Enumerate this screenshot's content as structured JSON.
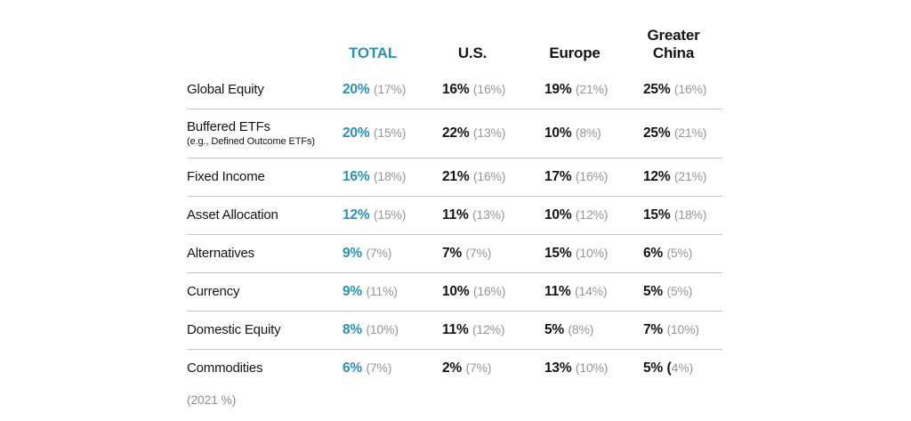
{
  "colors": {
    "accent_blue": "#2a90b5",
    "muted_gray": "#969696",
    "divider": "#c5c5c5",
    "text": "#141414"
  },
  "header": {
    "columns": [
      "TOTAL",
      "U.S.",
      "Europe",
      "Greater China"
    ]
  },
  "footnote": "(2021 %)",
  "table": {
    "rows": [
      {
        "label": "Global Equity",
        "sublabel": "",
        "cells": [
          {
            "v": "20%",
            "nd": "",
            "n": "(17%)"
          },
          {
            "v": "16%",
            "nd": "",
            "n": "(16%)"
          },
          {
            "v": "19%",
            "nd": "",
            "n": "(21%)"
          },
          {
            "v": "25%",
            "nd": "",
            "n": "(16%)"
          }
        ]
      },
      {
        "label": "Buffered ETFs",
        "sublabel": "(e.g., Defined Outcome ETFs)",
        "cells": [
          {
            "v": "20%",
            "nd": "",
            "n": "(15%)"
          },
          {
            "v": "22%",
            "nd": "",
            "n": "(13%)"
          },
          {
            "v": "10%",
            "nd": "",
            "n": "(8%)"
          },
          {
            "v": "25%",
            "nd": "",
            "n": "(21%)"
          }
        ]
      },
      {
        "label": "Fixed Income",
        "sublabel": "",
        "cells": [
          {
            "v": "16%",
            "nd": "",
            "n": "(18%)"
          },
          {
            "v": "21%",
            "nd": "",
            "n": "(16%)"
          },
          {
            "v": "17%",
            "nd": "",
            "n": "(16%)"
          },
          {
            "v": "12%",
            "nd": "",
            "n": "(21%)"
          }
        ]
      },
      {
        "label": "Asset Allocation",
        "sublabel": "",
        "cells": [
          {
            "v": "12%",
            "nd": "",
            "n": "(15%)"
          },
          {
            "v": "11%",
            "nd": "",
            "n": "(13%)"
          },
          {
            "v": "10%",
            "nd": "",
            "n": "(12%)"
          },
          {
            "v": "15%",
            "nd": "",
            "n": "(18%)"
          }
        ]
      },
      {
        "label": "Alternatives",
        "sublabel": "",
        "cells": [
          {
            "v": "9%",
            "nd": "",
            "n": "(7%)"
          },
          {
            "v": "7%",
            "nd": "",
            "n": "(7%)"
          },
          {
            "v": "15%",
            "nd": "",
            "n": "(10%)"
          },
          {
            "v": "6%",
            "nd": "",
            "n": "(5%)"
          }
        ]
      },
      {
        "label": "Currency",
        "sublabel": "",
        "cells": [
          {
            "v": "9%",
            "nd": "",
            "n": "(11%)"
          },
          {
            "v": "10%",
            "nd": "",
            "n": "(16%)"
          },
          {
            "v": "11%",
            "nd": "",
            "n": "(14%)"
          },
          {
            "v": "5%",
            "nd": "",
            "n": "(5%)"
          }
        ]
      },
      {
        "label": "Domestic Equity",
        "sublabel": "",
        "cells": [
          {
            "v": "8%",
            "nd": "",
            "n": "(10%)"
          },
          {
            "v": "11%",
            "nd": "",
            "n": "(12%)"
          },
          {
            "v": "5%",
            "nd": "",
            "n": "(8%)"
          },
          {
            "v": "7%",
            "nd": "",
            "n": "(10%)"
          }
        ]
      },
      {
        "label": "Commodities",
        "sublabel": "",
        "cells": [
          {
            "v": "6%",
            "nd": "",
            "n": "(7%)"
          },
          {
            "v": "2%",
            "nd": "",
            "n": "(7%)"
          },
          {
            "v": "13%",
            "nd": "",
            "n": "(10%)"
          },
          {
            "v": "5%",
            "nd": "(",
            "n": "4%)"
          }
        ]
      }
    ]
  },
  "chart_data": {
    "type": "table",
    "title": "",
    "categories": [
      "Global Equity",
      "Buffered ETFs (e.g., Defined Outcome ETFs)",
      "Fixed Income",
      "Asset Allocation",
      "Alternatives",
      "Currency",
      "Domestic Equity",
      "Commodities"
    ],
    "columns": [
      "TOTAL",
      "U.S.",
      "Europe",
      "Greater China"
    ],
    "series": [
      {
        "name": "TOTAL",
        "values": [
          20,
          20,
          16,
          12,
          9,
          9,
          8,
          6
        ],
        "values_2021": [
          17,
          15,
          18,
          15,
          7,
          11,
          10,
          7
        ]
      },
      {
        "name": "U.S.",
        "values": [
          16,
          22,
          21,
          11,
          7,
          10,
          11,
          2
        ],
        "values_2021": [
          16,
          13,
          16,
          13,
          7,
          16,
          12,
          7
        ]
      },
      {
        "name": "Europe",
        "values": [
          19,
          10,
          17,
          10,
          15,
          11,
          5,
          13
        ],
        "values_2021": [
          21,
          8,
          16,
          12,
          10,
          14,
          8,
          10
        ]
      },
      {
        "name": "Greater China",
        "values": [
          25,
          25,
          12,
          15,
          6,
          5,
          7,
          5
        ],
        "values_2021": [
          16,
          21,
          21,
          18,
          5,
          5,
          10,
          4
        ]
      }
    ],
    "footnote": "(2021 %)",
    "units": "%",
    "legend_position": "none",
    "grid": "horizontal-row-dividers"
  }
}
